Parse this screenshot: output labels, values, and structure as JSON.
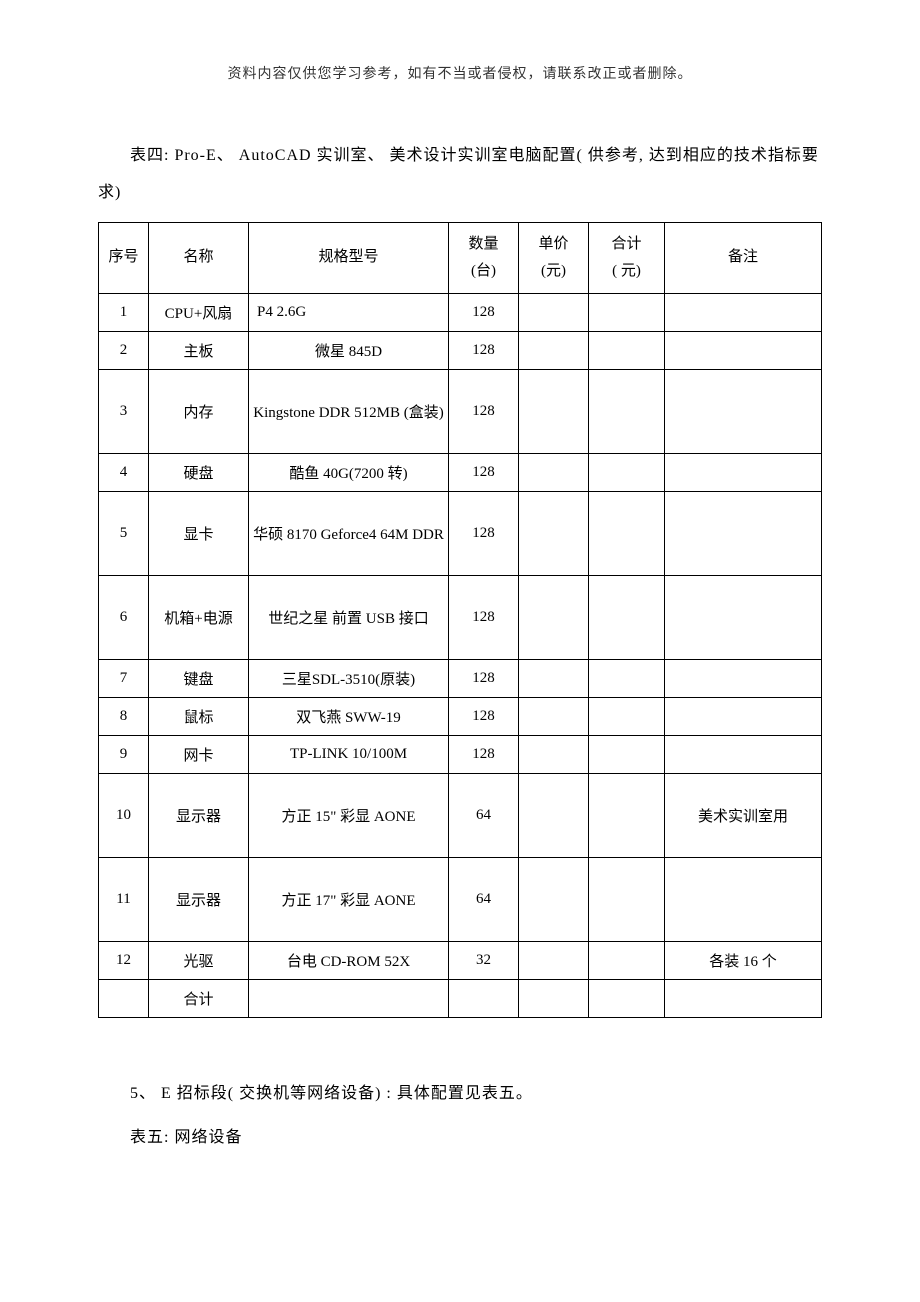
{
  "header_note": "资料内容仅供您学习参考，如有不当或者侵权，请联系改正或者删除。",
  "main_para": "表四: Pro-E、 AutoCAD 实训室、 美术设计实训室电脑配置( 供参考, 达到相应的技术指标要求)",
  "table": {
    "columns": [
      "序号",
      "名称",
      "规格型号",
      "数量(台)",
      "单价(元)",
      "合计( 元)",
      "备注"
    ],
    "col_line1": [
      "序号",
      "名称",
      "规格型号",
      "数量",
      "单价",
      "合计",
      "备注"
    ],
    "col_line2": [
      "",
      "",
      "",
      "(台)",
      "(元)",
      "( 元)",
      ""
    ],
    "rows": [
      {
        "seq": "1",
        "name": "CPU+风扇",
        "spec": "P4 2.6G",
        "qty": "128",
        "price": "",
        "total": "",
        "note": "",
        "tall": false
      },
      {
        "seq": "2",
        "name": "主板",
        "spec": "微星 845D",
        "qty": "128",
        "price": "",
        "total": "",
        "note": "",
        "tall": false
      },
      {
        "seq": "3",
        "name": "内存",
        "spec": "Kingstone  DDR 512MB (盒装)",
        "qty": "128",
        "price": "",
        "total": "",
        "note": "",
        "tall": true
      },
      {
        "seq": "4",
        "name": "硬盘",
        "spec": "酷鱼 40G(7200 转)",
        "qty": "128",
        "price": "",
        "total": "",
        "note": "",
        "tall": false
      },
      {
        "seq": "5",
        "name": "显卡",
        "spec": "华硕 8170 Geforce4 64M DDR",
        "qty": "128",
        "price": "",
        "total": "",
        "note": "",
        "tall": true
      },
      {
        "seq": "6",
        "name": "机箱+电源",
        "spec": "世纪之星 前置 USB 接口",
        "qty": "128",
        "price": "",
        "total": "",
        "note": "",
        "tall": true
      },
      {
        "seq": "7",
        "name": "键盘",
        "spec": "三星SDL-3510(原装)",
        "qty": "128",
        "price": "",
        "total": "",
        "note": "",
        "tall": false
      },
      {
        "seq": "8",
        "name": "鼠标",
        "spec": "双飞燕 SWW-19",
        "qty": "128",
        "price": "",
        "total": "",
        "note": "",
        "tall": false
      },
      {
        "seq": "9",
        "name": "网卡",
        "spec": "TP-LINK 10/100M",
        "qty": "128",
        "price": "",
        "total": "",
        "note": "",
        "tall": false
      },
      {
        "seq": "10",
        "name": "显示器",
        "spec": "方正 15\" 彩显 AONE",
        "qty": "64",
        "price": "",
        "total": "",
        "note": "美术实训室用",
        "tall": true
      },
      {
        "seq": "11",
        "name": "显示器",
        "spec": "方正 17\" 彩显 AONE",
        "qty": "64",
        "price": "",
        "total": "",
        "note": "",
        "tall": true
      },
      {
        "seq": "12",
        "name": "光驱",
        "spec": "台电 CD-ROM 52X",
        "qty": "32",
        "price": "",
        "total": "",
        "note": "各装 16 个",
        "tall": false
      },
      {
        "seq": "",
        "name": "合计",
        "spec": "",
        "qty": "",
        "price": "",
        "total": "",
        "note": "",
        "tall": false
      }
    ]
  },
  "footer_para1": "5、 E 招标段( 交换机等网络设备) : 具体配置见表五。",
  "footer_para2": "表五: 网络设备",
  "styling": {
    "page_bg": "#ffffff",
    "text_color": "#000000",
    "header_note_color": "#333333",
    "border_color": "#000000",
    "font_family": "SimSun",
    "body_font_size": 16,
    "table_font_size": 15,
    "header_font_size": 14
  }
}
